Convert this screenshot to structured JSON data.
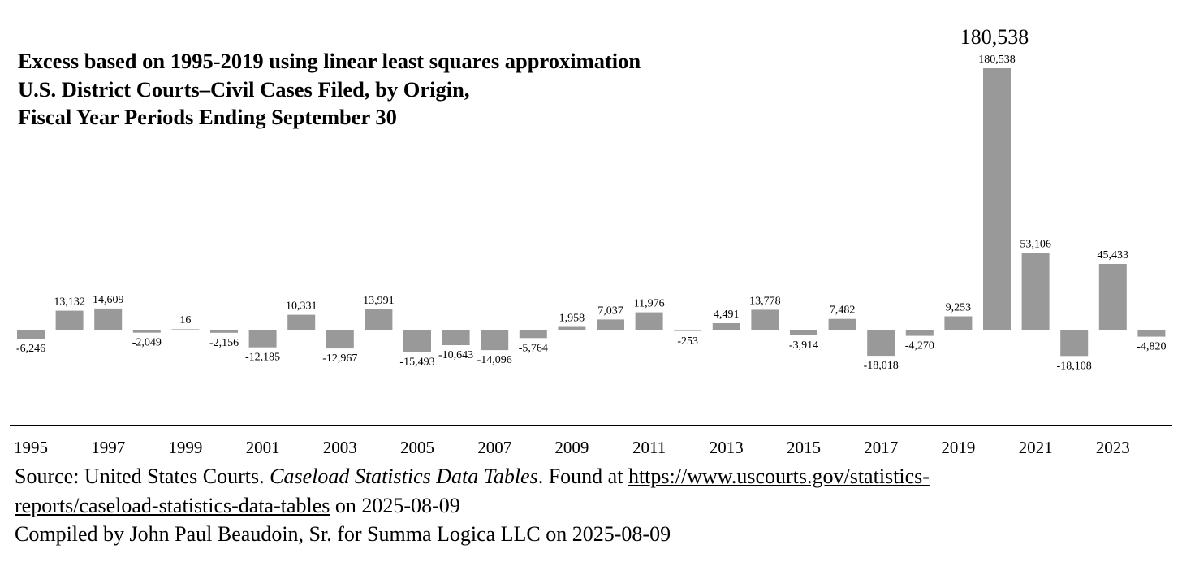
{
  "chart_data": {
    "type": "bar",
    "title_lines": [
      "Excess based on 1995-2019 using linear least squares approximation",
      "U.S. District Courts–Civil Cases Filed, by Origin,",
      "Fiscal Year Periods Ending September 30"
    ],
    "categories": [
      1995,
      1996,
      1997,
      1998,
      1999,
      2000,
      2001,
      2002,
      2003,
      2004,
      2005,
      2006,
      2007,
      2008,
      2009,
      2010,
      2011,
      2012,
      2013,
      2014,
      2015,
      2016,
      2017,
      2018,
      2019,
      2020,
      2021,
      2022,
      2023,
      2024
    ],
    "values": [
      -6246,
      13132,
      14609,
      -2049,
      16,
      -2156,
      -12185,
      10331,
      -12967,
      13991,
      -15493,
      -10643,
      -14096,
      -5764,
      1958,
      7037,
      11976,
      -253,
      4491,
      13778,
      -3914,
      7482,
      -18018,
      -4270,
      9253,
      180538,
      53106,
      -18108,
      45433,
      -4820
    ],
    "value_labels": [
      "-6,246",
      "13,132",
      "14,609",
      "-2,049",
      "16",
      "-2,156",
      "-12,185",
      "10,331",
      "-12,967",
      "13,991",
      "-15,493",
      "-10,643",
      "-14,096",
      "-5,764",
      "1,958",
      "7,037",
      "11,976",
      "-253",
      "4,491",
      "13,778",
      "-3,914",
      "7,482",
      "-18,018",
      "-4,270",
      "9,253",
      "180,538",
      "53,106",
      "-18,108",
      "45,433",
      "-4,820"
    ],
    "tick_labels": [
      "1995",
      "1997",
      "1999",
      "2001",
      "2003",
      "2005",
      "2007",
      "2009",
      "2011",
      "2013",
      "2015",
      "2017",
      "2019",
      "2021",
      "2023"
    ],
    "peak_annotation": "180,538",
    "xlabel": "",
    "ylabel": "",
    "bar_color": "#999999"
  },
  "source": {
    "prefix": "Source: United States Courts. ",
    "title_italic": "Caseload Statistics Data Tables",
    "found_at": ". Found at ",
    "url_part1": "https://www.uscourts.gov/statistics-",
    "url_part2": "reports/caseload-statistics-data-tables",
    "date_suffix": " on 2025-08-09",
    "compiled": "Compiled by John Paul Beaudoin, Sr. for Summa Logica LLC on 2025-08-09"
  }
}
